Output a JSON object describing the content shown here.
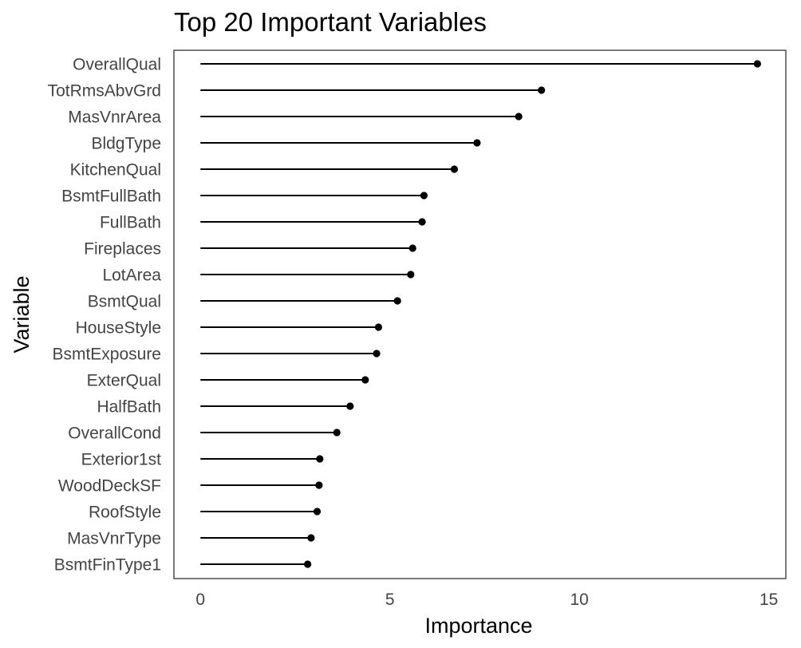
{
  "chart_data": {
    "type": "lollipop",
    "title": "Top 20 Important Variables",
    "xlabel": "Importance",
    "ylabel": "Variable",
    "xlim": [
      -0.7,
      15.45
    ],
    "xticks": [
      0,
      5,
      10,
      15
    ],
    "xtick_labels": [
      "0",
      "5",
      "10",
      "15"
    ],
    "grid": false,
    "colors": {
      "stem": "#000000",
      "point": "#000000",
      "border": "#333333"
    },
    "categories": [
      "OverallQual",
      "TotRmsAbvGrd",
      "MasVnrArea",
      "BldgType",
      "KitchenQual",
      "BsmtFullBath",
      "FullBath",
      "Fireplaces",
      "LotArea",
      "BsmtQual",
      "HouseStyle",
      "BsmtExposure",
      "ExterQual",
      "HalfBath",
      "OverallCond",
      "Exterior1st",
      "WoodDeckSF",
      "RoofStyle",
      "MasVnrType",
      "BsmtFinType1"
    ],
    "values": [
      14.7,
      9.0,
      8.4,
      7.3,
      6.7,
      5.9,
      5.85,
      5.6,
      5.55,
      5.2,
      4.7,
      4.65,
      4.35,
      3.95,
      3.6,
      3.15,
      3.13,
      3.08,
      2.92,
      2.83
    ]
  }
}
